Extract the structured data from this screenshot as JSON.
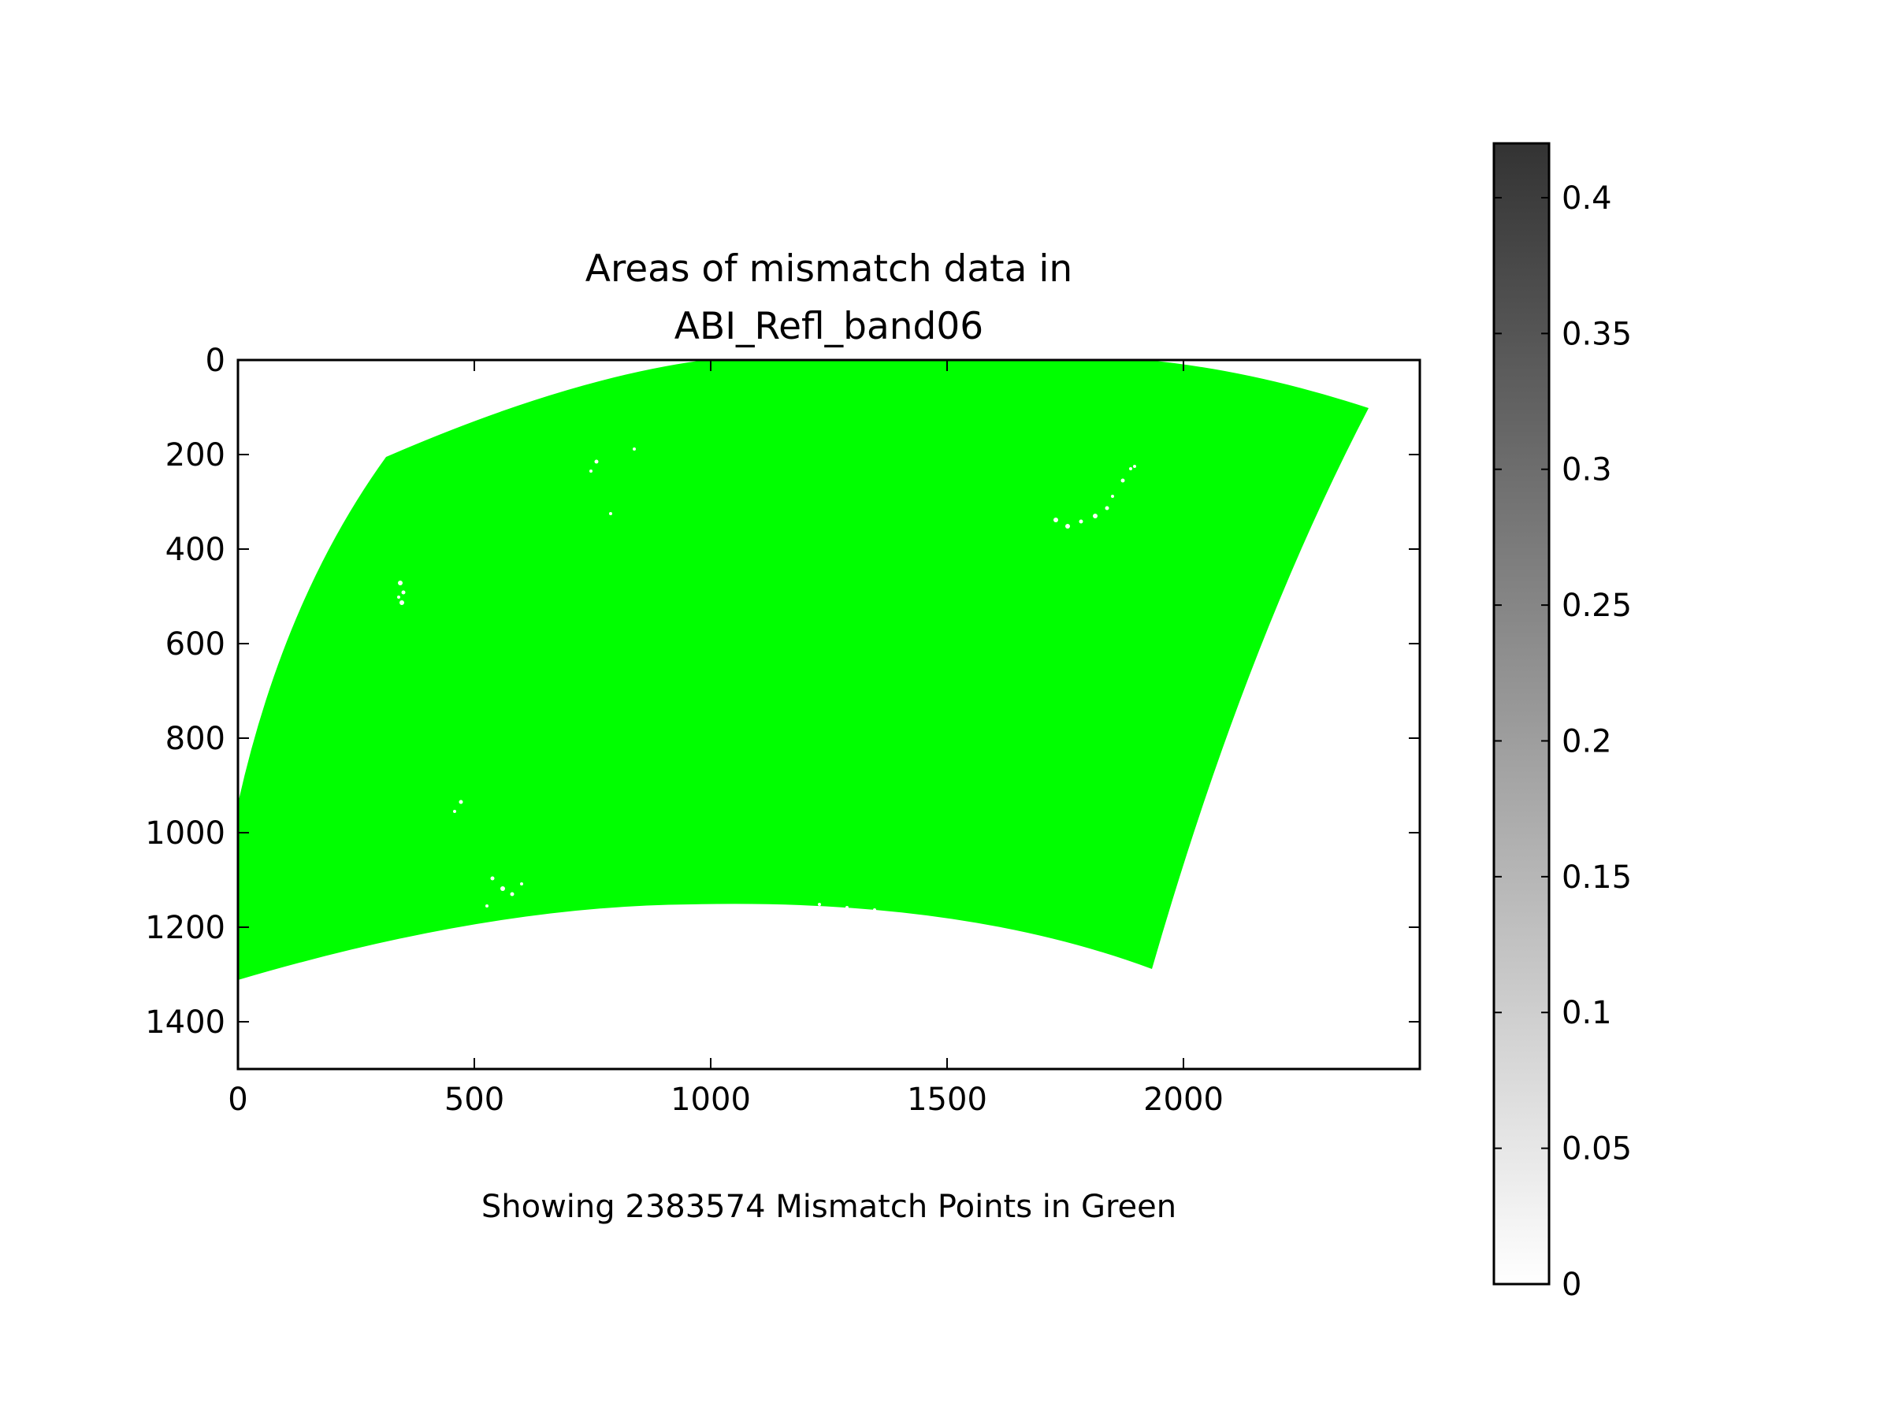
{
  "chart_data": {
    "type": "heatmap",
    "title_line1": "Areas of mismatch data in",
    "title_line2": "ABI_Refl_band06",
    "xlabel": "Showing 2383574 Mismatch Points in Green",
    "ylabel": "",
    "xlim": [
      0,
      2500
    ],
    "ylim": [
      1500,
      0
    ],
    "x_ticks": [
      0,
      500,
      1000,
      1500,
      2000
    ],
    "x_tick_labels": [
      "0",
      "500",
      "1000",
      "1500",
      "2000"
    ],
    "y_ticks": [
      0,
      200,
      400,
      600,
      800,
      1000,
      1200,
      1400
    ],
    "y_tick_labels": [
      "0",
      "200",
      "400",
      "600",
      "800",
      "1000",
      "1200",
      "1400"
    ],
    "y_inverted": true,
    "mismatch_points": 2383574,
    "mismatch_color": "#00ff00",
    "background_color": "#ffffff",
    "colorbar": {
      "colormap": "Greys",
      "range": [
        0,
        0.42
      ],
      "ticks": [
        0,
        0.05,
        0.1,
        0.15,
        0.2,
        0.25,
        0.3,
        0.35,
        0.4
      ],
      "tick_labels": [
        "0",
        "0.05",
        "0.1",
        "0.15",
        "0.2",
        "0.25",
        "0.3",
        "0.35",
        "0.4"
      ],
      "low_color": "#ffffff",
      "high_color": "#333333"
    },
    "grid": false,
    "legend": "none"
  }
}
